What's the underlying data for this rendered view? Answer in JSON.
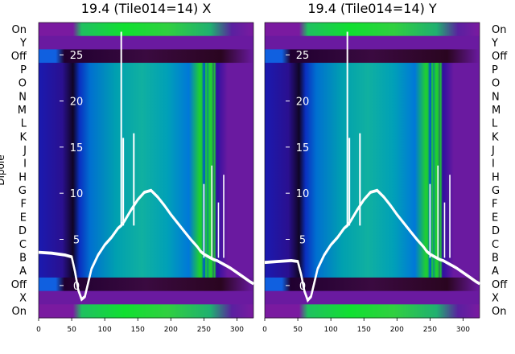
{
  "chart_data": [
    {
      "type": "heatmap",
      "title": "19.4 (Tile014=14) X",
      "ylabel": "Dipole",
      "dipole_labels": [
        "On",
        "Y",
        "Off",
        "P",
        "O",
        "N",
        "M",
        "L",
        "K",
        "J",
        "I",
        "H",
        "G",
        "F",
        "E",
        "D",
        "C",
        "B",
        "A",
        "Off",
        "X",
        "On"
      ],
      "x_ticks": [
        0,
        50,
        100,
        150,
        200,
        250,
        300
      ],
      "xlim": [
        0,
        325
      ],
      "y_overlay_ticks": [
        "0",
        "5",
        "10",
        "15",
        "20",
        "25"
      ],
      "y_overlay_values": [
        0,
        5,
        10,
        15,
        20,
        25
      ],
      "ylim_overlay": [
        -3.5,
        28.5
      ],
      "overlay_line": {
        "x": [
          0,
          20,
          40,
          50,
          55,
          60,
          65,
          70,
          75,
          80,
          90,
          100,
          110,
          120,
          125,
          130,
          140,
          150,
          160,
          170,
          180,
          190,
          200,
          210,
          220,
          230,
          240,
          245,
          250,
          255,
          260,
          265,
          270,
          275,
          280,
          285,
          290,
          300,
          310,
          320,
          325
        ],
        "y": [
          3.6,
          3.5,
          3.3,
          3.1,
          1.5,
          -0.5,
          -1.5,
          -1.2,
          0.3,
          1.8,
          3.3,
          4.4,
          5.2,
          6.2,
          6.5,
          7,
          8.2,
          9.3,
          10.1,
          10.3,
          9.6,
          8.7,
          7.7,
          6.8,
          5.9,
          5,
          4.2,
          3.7,
          3.4,
          3.2,
          3,
          2.8,
          2.7,
          2.5,
          2.3,
          2.1,
          1.9,
          1.4,
          0.9,
          0.4,
          0.2
        ]
      }
    },
    {
      "type": "heatmap",
      "title": "19.4 (Tile014=14) Y",
      "dipole_labels": [
        "On",
        "Y",
        "Off",
        "P",
        "O",
        "N",
        "M",
        "L",
        "K",
        "J",
        "I",
        "H",
        "G",
        "F",
        "E",
        "D",
        "C",
        "B",
        "A",
        "Off",
        "X",
        "On"
      ],
      "x_ticks": [
        0,
        50,
        100,
        150,
        200,
        250,
        300
      ],
      "xlim": [
        0,
        325
      ],
      "y_overlay_ticks": [
        "0",
        "5",
        "10",
        "15",
        "20",
        "25"
      ],
      "y_overlay_values": [
        0,
        5,
        10,
        15,
        20,
        25
      ],
      "ylim_overlay": [
        -3.5,
        28.5
      ],
      "overlay_line": {
        "x": [
          0,
          20,
          40,
          50,
          55,
          60,
          65,
          70,
          75,
          80,
          90,
          100,
          110,
          120,
          125,
          130,
          140,
          150,
          160,
          170,
          180,
          190,
          200,
          210,
          220,
          230,
          240,
          245,
          250,
          255,
          260,
          265,
          270,
          275,
          280,
          285,
          290,
          300,
          310,
          320,
          325
        ],
        "y": [
          2.5,
          2.6,
          2.7,
          2.6,
          1.2,
          -0.6,
          -1.6,
          -1.2,
          0.3,
          1.8,
          3.3,
          4.4,
          5.2,
          6.2,
          6.5,
          7,
          8.2,
          9.3,
          10.1,
          10.3,
          9.6,
          8.7,
          7.7,
          6.8,
          5.9,
          5,
          4.2,
          3.7,
          3.4,
          3.2,
          3,
          2.8,
          2.7,
          2.5,
          2.3,
          2.1,
          1.9,
          1.4,
          0.9,
          0.4,
          0.2
        ]
      }
    }
  ],
  "colors": {
    "line": "#ffffff",
    "bright_band": "#22dd22",
    "dark_band": "#2a0520",
    "background_band": "#6a1aa0",
    "overlay_text": "#ffffff"
  }
}
